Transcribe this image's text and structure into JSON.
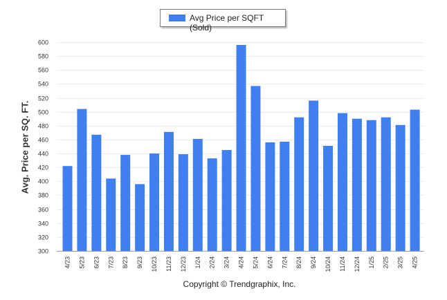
{
  "chart_data": {
    "type": "bar",
    "legend": {
      "label": "Avg Price per SQFT (Sold)",
      "placement": "top-center"
    },
    "ylabel": "Avg. Price per SQ. FT.",
    "xlabel": "",
    "ylim": [
      300,
      600
    ],
    "yticks": [
      300,
      320,
      340,
      360,
      380,
      400,
      420,
      440,
      460,
      480,
      500,
      520,
      540,
      560,
      580,
      600
    ],
    "grid": true,
    "bar_color": "#3f7ff0",
    "categories": [
      "4/23",
      "5/23",
      "6/23",
      "7/23",
      "8/23",
      "9/23",
      "10/23",
      "11/23",
      "12/23",
      "1/24",
      "2/24",
      "3/24",
      "4/24",
      "5/24",
      "6/24",
      "7/24",
      "8/24",
      "9/24",
      "10/24",
      "11/24",
      "12/24",
      "1/25",
      "2/25",
      "3/25",
      "4/25"
    ],
    "values": [
      422,
      504,
      467,
      404,
      438,
      396,
      440,
      471,
      439,
      461,
      433,
      445,
      596,
      537,
      456,
      457,
      492,
      516,
      451,
      498,
      490,
      488,
      492,
      481,
      503
    ]
  },
  "footer": {
    "credit": "Copyright © Trendgraphix, Inc."
  }
}
